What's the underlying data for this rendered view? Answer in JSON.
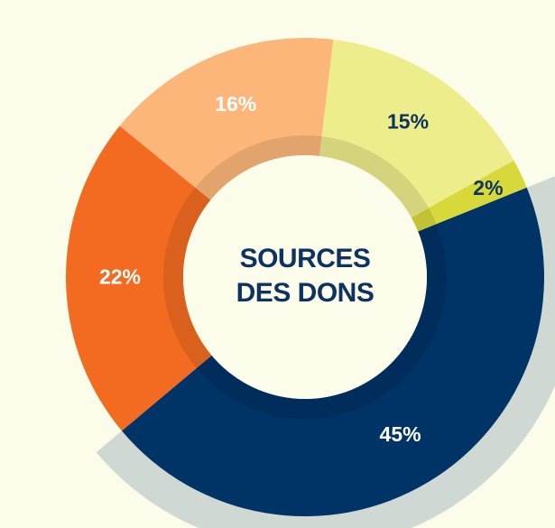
{
  "chart_data": {
    "type": "pie",
    "title_lines": [
      "SOURCES",
      "DES DONS"
    ],
    "slices": [
      {
        "value": 45,
        "label": "45%",
        "color": "#003366",
        "label_color": "#ffffff"
      },
      {
        "value": 22,
        "label": "22%",
        "color": "#f26b21",
        "label_color": "#ffffff"
      },
      {
        "value": 16,
        "label": "16%",
        "color": "#fdb67a",
        "label_color": "#ffffff"
      },
      {
        "value": 15,
        "label": "15%",
        "color": "#eeed8b",
        "label_color": "#0f3360"
      },
      {
        "value": 2,
        "label": "2%",
        "color": "#d7d93a",
        "label_color": "#0f3360"
      }
    ],
    "highlight_color": "#cfd8d3",
    "center_color": "#fcfcea"
  }
}
